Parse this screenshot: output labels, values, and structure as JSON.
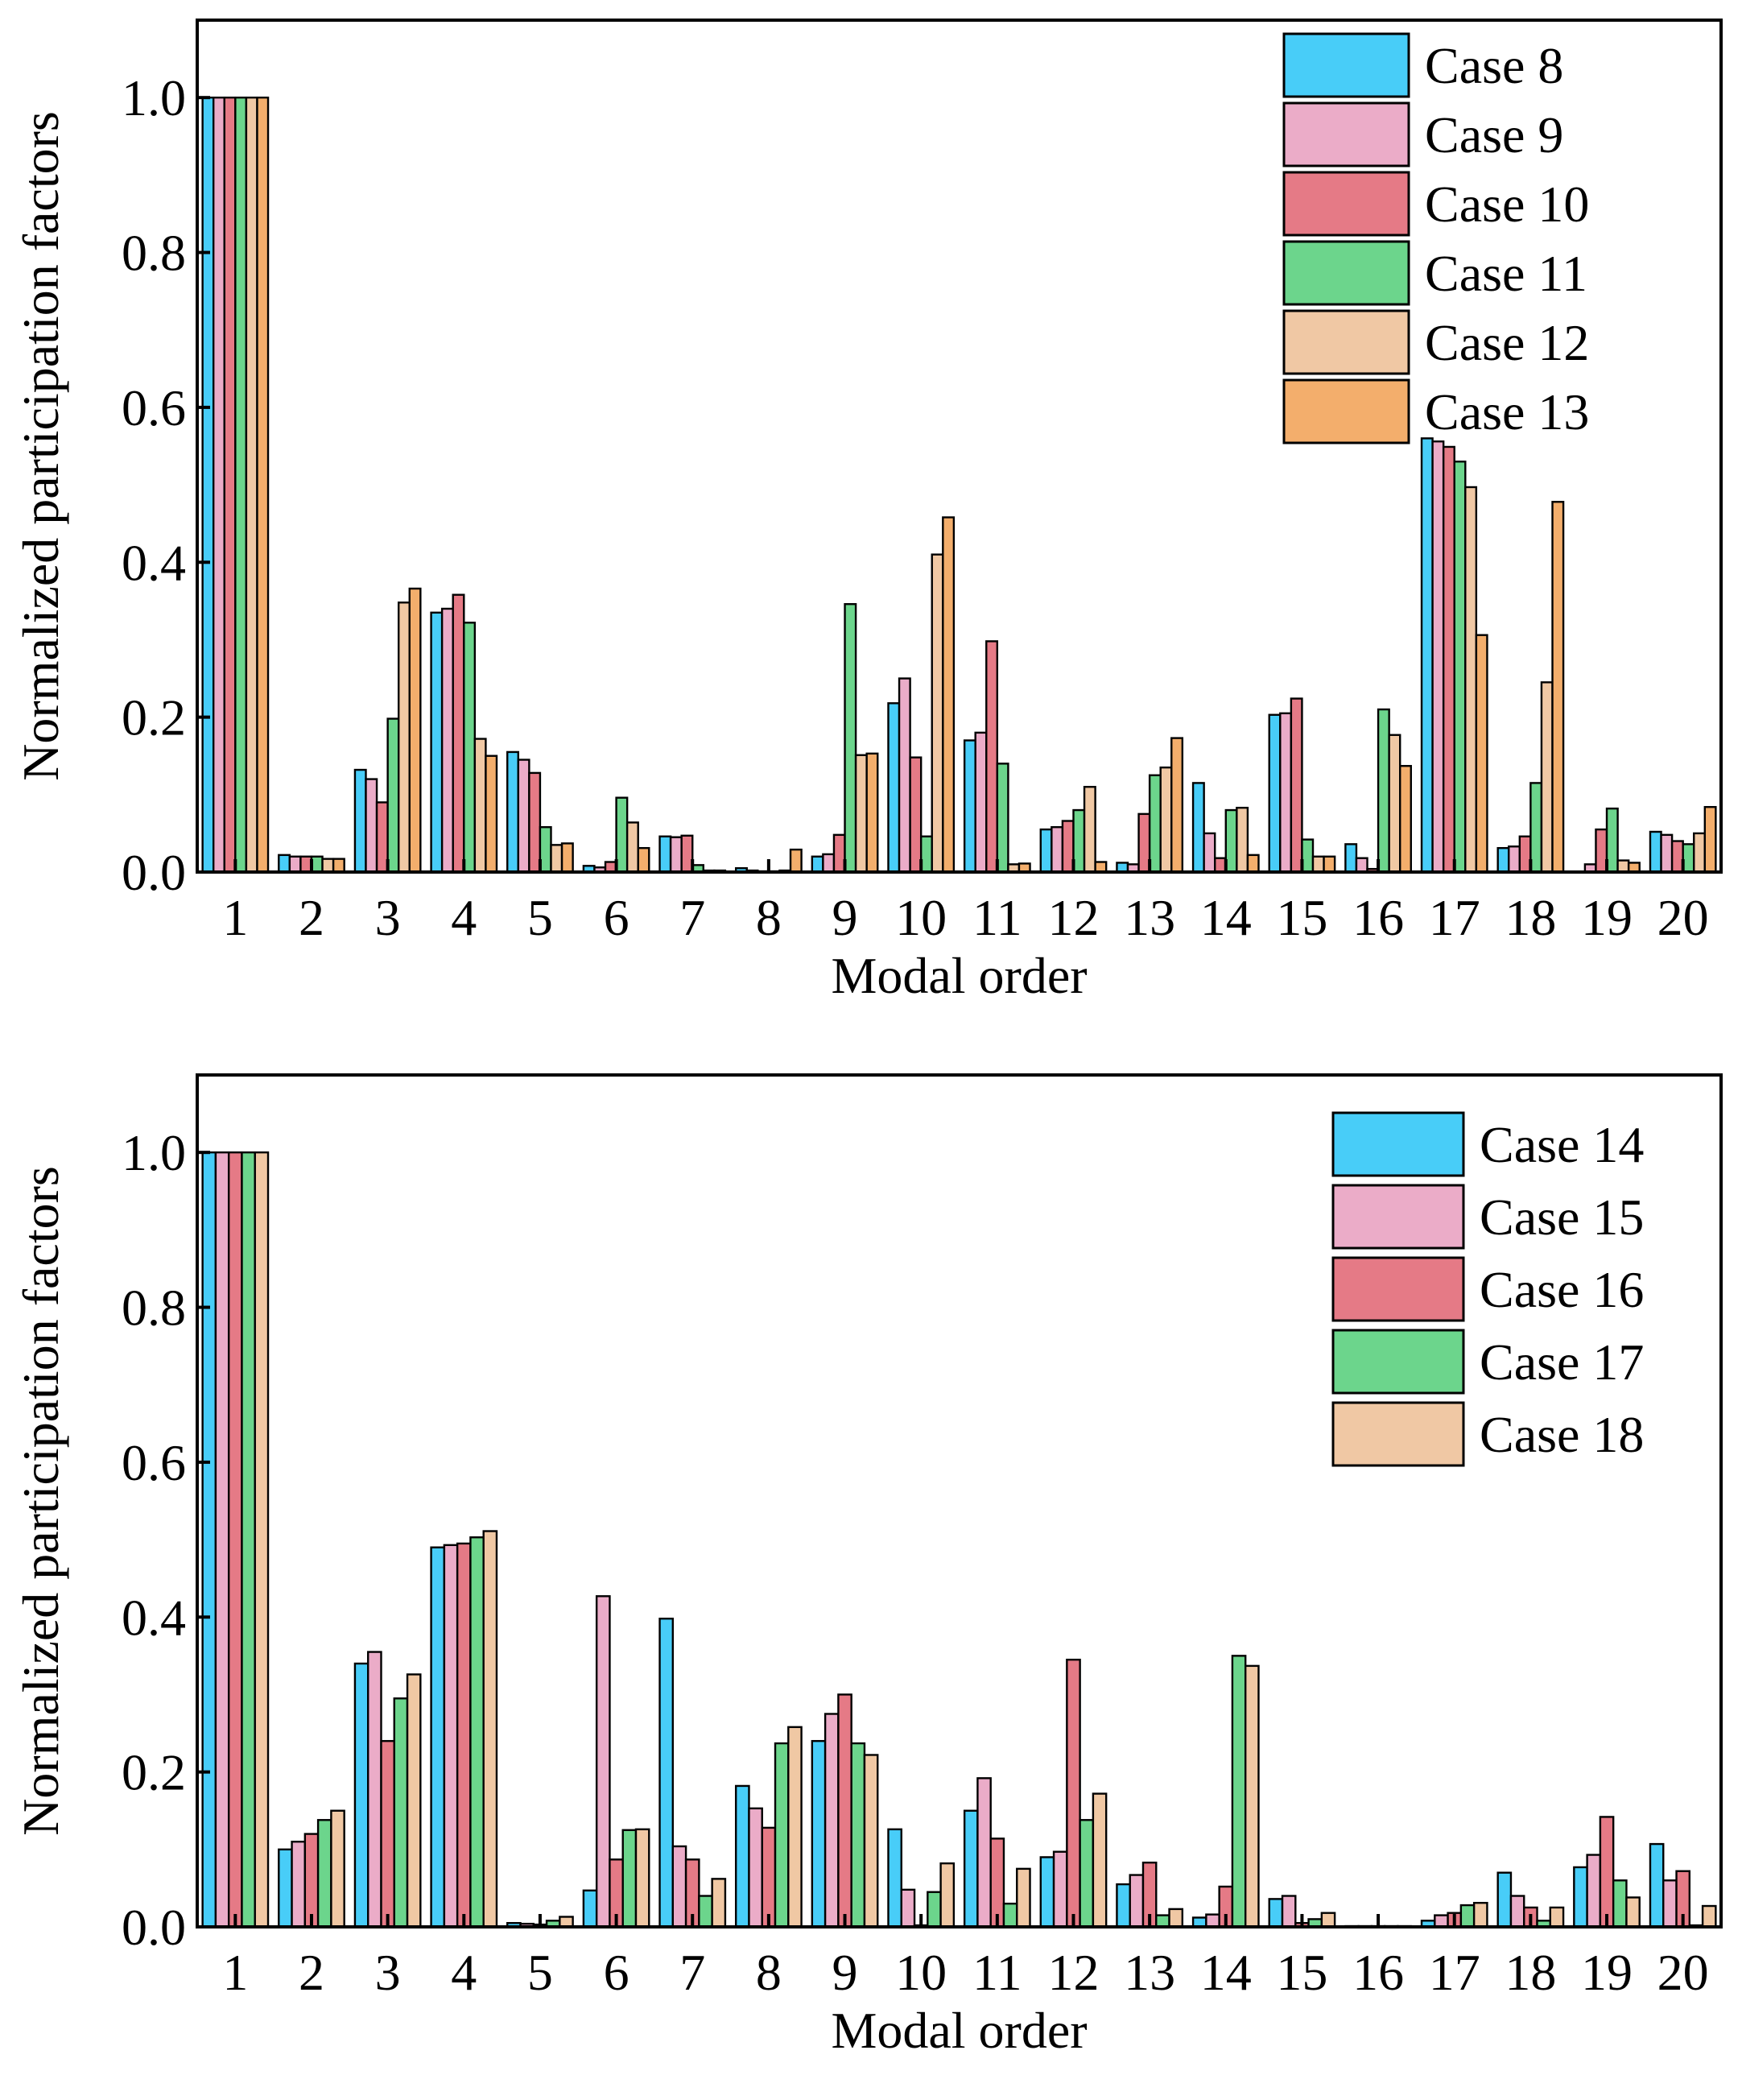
{
  "colors": {
    "Case 8": "#48CDF8",
    "Case 9": "#EBACC8",
    "Case 10": "#E57A86",
    "Case 11": "#6CD58C",
    "Case 12": "#F0C8A4",
    "Case 13": "#F3AE6C",
    "Case 14": "#48CDF8",
    "Case 15": "#EBACC8",
    "Case 16": "#E57A86",
    "Case 17": "#6CD58C",
    "Case 18": "#F0C8A4"
  },
  "chart_data": [
    {
      "type": "bar",
      "title": "",
      "xlabel": "Modal order",
      "ylabel": "Normalized participation factors",
      "ylim": [
        0,
        1.1
      ],
      "yticks": [
        "0.0",
        "0.2",
        "0.4",
        "0.6",
        "0.8",
        "1.0"
      ],
      "grid": false,
      "legend_position": "top-right",
      "categories": [
        "1",
        "2",
        "3",
        "4",
        "5",
        "6",
        "7",
        "8",
        "9",
        "10",
        "11",
        "12",
        "13",
        "14",
        "15",
        "16",
        "17",
        "18",
        "19",
        "20"
      ],
      "series": [
        {
          "name": "Case 8",
          "values": [
            1.0,
            0.022,
            0.132,
            0.335,
            0.155,
            0.008,
            0.046,
            0.005,
            0.02,
            0.218,
            0.17,
            0.055,
            0.012,
            0.115,
            0.203,
            0.036,
            0.56,
            0.031,
            0.0,
            0.052
          ]
        },
        {
          "name": "Case 9",
          "values": [
            1.0,
            0.02,
            0.12,
            0.34,
            0.145,
            0.006,
            0.045,
            0.002,
            0.023,
            0.25,
            0.18,
            0.058,
            0.01,
            0.05,
            0.205,
            0.018,
            0.556,
            0.033,
            0.01,
            0.048
          ]
        },
        {
          "name": "Case 10",
          "values": [
            1.0,
            0.02,
            0.09,
            0.358,
            0.128,
            0.013,
            0.047,
            0.001,
            0.048,
            0.148,
            0.298,
            0.066,
            0.075,
            0.018,
            0.224,
            0.004,
            0.549,
            0.046,
            0.055,
            0.04
          ]
        },
        {
          "name": "Case 11",
          "values": [
            1.0,
            0.02,
            0.198,
            0.322,
            0.058,
            0.096,
            0.009,
            0.001,
            0.346,
            0.046,
            0.14,
            0.08,
            0.125,
            0.08,
            0.042,
            0.21,
            0.53,
            0.115,
            0.082,
            0.036
          ]
        },
        {
          "name": "Case 12",
          "values": [
            1.0,
            0.017,
            0.348,
            0.172,
            0.035,
            0.064,
            0.002,
            0.002,
            0.151,
            0.41,
            0.01,
            0.11,
            0.135,
            0.083,
            0.02,
            0.177,
            0.497,
            0.245,
            0.015,
            0.05
          ]
        },
        {
          "name": "Case 13",
          "values": [
            1.0,
            0.017,
            0.366,
            0.15,
            0.037,
            0.031,
            0.002,
            0.029,
            0.153,
            0.458,
            0.011,
            0.013,
            0.173,
            0.022,
            0.02,
            0.137,
            0.306,
            0.478,
            0.012,
            0.084
          ]
        }
      ]
    },
    {
      "type": "bar",
      "title": "",
      "xlabel": "Modal order",
      "ylabel": "Normalized participation factors",
      "ylim": [
        0,
        1.1
      ],
      "yticks": [
        "0.0",
        "0.2",
        "0.4",
        "0.6",
        "0.8",
        "1.0"
      ],
      "grid": false,
      "legend_position": "top-right",
      "categories": [
        "1",
        "2",
        "3",
        "4",
        "5",
        "6",
        "7",
        "8",
        "9",
        "10",
        "11",
        "12",
        "13",
        "14",
        "15",
        "16",
        "17",
        "18",
        "19",
        "20"
      ],
      "series": [
        {
          "name": "Case 14",
          "values": [
            1.0,
            0.1,
            0.34,
            0.49,
            0.005,
            0.047,
            0.398,
            0.182,
            0.24,
            0.126,
            0.15,
            0.09,
            0.055,
            0.012,
            0.036,
            0.001,
            0.008,
            0.07,
            0.077,
            0.107
          ]
        },
        {
          "name": "Case 15",
          "values": [
            1.0,
            0.11,
            0.355,
            0.493,
            0.004,
            0.427,
            0.104,
            0.153,
            0.275,
            0.048,
            0.192,
            0.097,
            0.067,
            0.016,
            0.04,
            0.001,
            0.015,
            0.04,
            0.093,
            0.06
          ]
        },
        {
          "name": "Case 16",
          "values": [
            1.0,
            0.12,
            0.24,
            0.495,
            0.003,
            0.087,
            0.087,
            0.128,
            0.3,
            0.002,
            0.114,
            0.345,
            0.083,
            0.052,
            0.005,
            0.001,
            0.018,
            0.025,
            0.142,
            0.072
          ]
        },
        {
          "name": "Case 17",
          "values": [
            1.0,
            0.138,
            0.295,
            0.503,
            0.008,
            0.125,
            0.04,
            0.237,
            0.237,
            0.045,
            0.03,
            0.138,
            0.015,
            0.35,
            0.01,
            0.001,
            0.028,
            0.008,
            0.06,
            0.002
          ]
        },
        {
          "name": "Case 18",
          "values": [
            1.0,
            0.15,
            0.326,
            0.511,
            0.013,
            0.126,
            0.062,
            0.258,
            0.222,
            0.082,
            0.075,
            0.172,
            0.023,
            0.337,
            0.018,
            0.001,
            0.031,
            0.025,
            0.038,
            0.027
          ]
        }
      ]
    }
  ]
}
